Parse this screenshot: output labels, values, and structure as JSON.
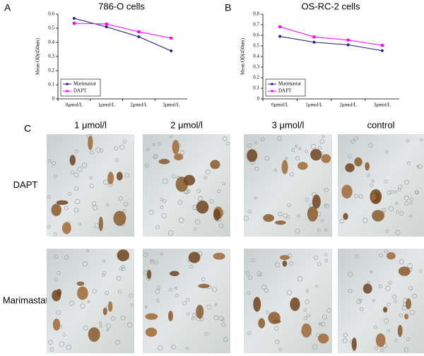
{
  "chart_data": [
    {
      "type": "line",
      "title": "786-O cells",
      "y_label": "Mean OD(450nm)",
      "categories": [
        "0μmol/L",
        "1μmol/L",
        "2μmol/L",
        "3μmol/L"
      ],
      "series": [
        {
          "name": "Marimastat",
          "color": "#1a1a80",
          "values": [
            0.57,
            0.51,
            0.44,
            0.34
          ]
        },
        {
          "name": "DAPT",
          "color": "#ff00ff",
          "values": [
            0.535,
            0.53,
            0.475,
            0.43
          ]
        }
      ],
      "ylim": [
        0,
        0.6
      ],
      "yticks": [
        0,
        0.1,
        0.2,
        0.3,
        0.4,
        0.5,
        0.6
      ],
      "legend": "lower left"
    },
    {
      "type": "line",
      "title": "OS-RC-2 cells",
      "y_label": "Mean OD(450nm)",
      "categories": [
        "0μmol/L",
        "1μmol/L",
        "2μmol/L",
        "3μmol/L"
      ],
      "series": [
        {
          "name": "Marimastat",
          "color": "#1a1a80",
          "values": [
            0.59,
            0.535,
            0.51,
            0.455
          ]
        },
        {
          "name": "DAPT",
          "color": "#ff00ff",
          "values": [
            0.68,
            0.585,
            0.555,
            0.505
          ]
        }
      ],
      "ylim": [
        0,
        0.8
      ],
      "yticks": [
        0,
        0.1,
        0.2,
        0.3,
        0.4,
        0.5,
        0.6,
        0.7,
        0.8
      ],
      "legend": "lower left"
    }
  ],
  "panel_labels": [
    "A",
    "B",
    "C"
  ],
  "panel_c": {
    "columns": [
      "1 μmol/l",
      "2 μmol/l",
      "3 μmol/l",
      "control"
    ],
    "rows": [
      "DAPT",
      "Marimastat"
    ]
  }
}
